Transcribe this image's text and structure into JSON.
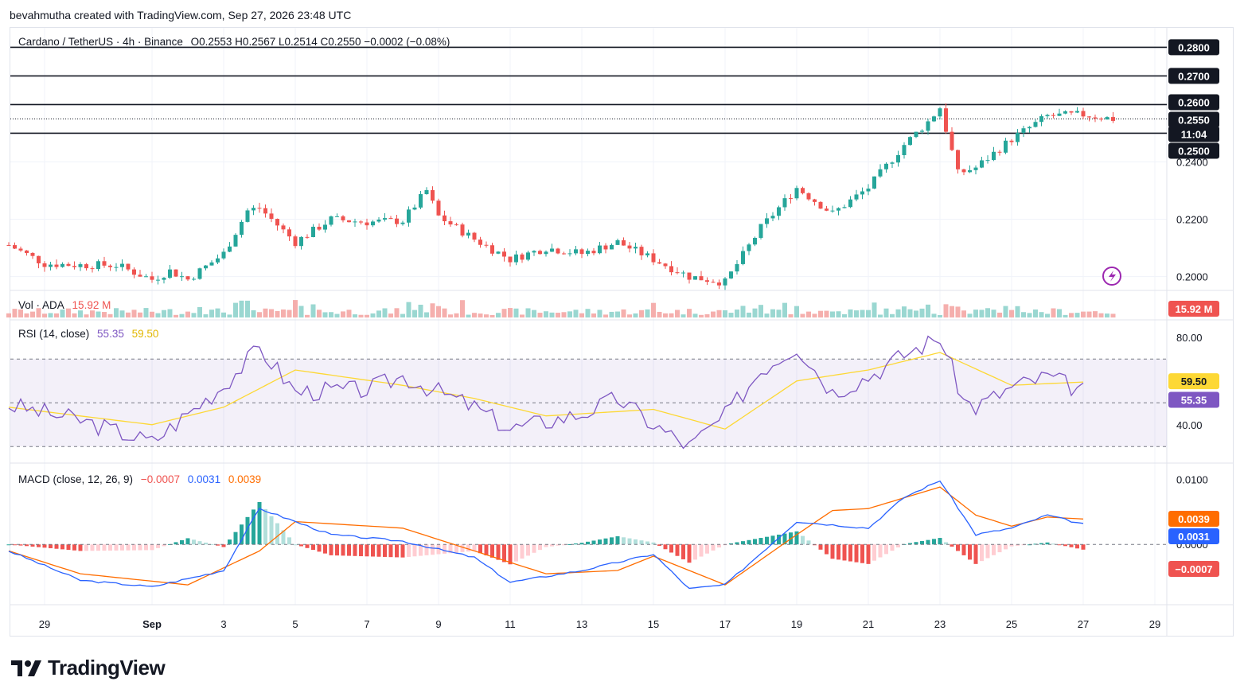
{
  "header": {
    "credit": "bevahmutha created with TradingView.com, Sep 27, 2026 23:48 UTC"
  },
  "legend": {
    "symbol": "Cardano / TetherUS · 4h · Binance",
    "ohlc": "O0.2553  H0.2567  L0.2514  C0.2550  −0.0002 (−0.08%)"
  },
  "volume_legend": {
    "label": "Vol · ADA",
    "value": "15.92 M",
    "badge": "15.92 M"
  },
  "rsi_legend": {
    "label": "RSI (14, close)",
    "rsi": "55.35",
    "ma": "59.50",
    "badge_rsi": "55.35",
    "badge_ma": "59.50"
  },
  "macd_legend": {
    "label": "MACD (close, 12, 26, 9)",
    "hist": "−0.0007",
    "macd": "0.0031",
    "signal": "0.0039",
    "badge_hist": "−0.0007",
    "badge_macd": "0.0031",
    "badge_signal": "0.0039"
  },
  "price_badges": {
    "level_0280": "0.2800",
    "level_0270": "0.2700",
    "level_0260": "0.2600",
    "current": "0.2550",
    "countdown": "11:04",
    "level_0250": "0.2500"
  },
  "brand": {
    "name": "TradingView"
  },
  "colors": {
    "up": "#26a69a",
    "down": "#ef5350",
    "rsi": "#7e57c2",
    "rsi_ma": "#fdd835",
    "macd": "#2962ff",
    "signal": "#ff6d00",
    "text": "#131722"
  },
  "chart_data": [
    {
      "type": "candlestick",
      "title": "Cardano / TetherUS · 4h · Binance",
      "yticks": [
        "0.2000",
        "0.2200",
        "0.2400"
      ],
      "ylim": [
        0.196,
        0.284
      ],
      "xticks": [
        "29",
        "Sep",
        "3",
        "5",
        "7",
        "9",
        "11",
        "13",
        "15",
        "17",
        "19",
        "21",
        "23",
        "25",
        "27",
        "29"
      ],
      "horizontal_levels": [
        0.28,
        0.27,
        0.26,
        0.25
      ],
      "current_price": 0.255,
      "close_path": [
        {
          "date": "Aug 28",
          "close": 0.211
        },
        {
          "date": "Aug 29",
          "close": 0.2045
        },
        {
          "date": "Aug 30",
          "close": 0.204
        },
        {
          "date": "Aug 31",
          "close": 0.204
        },
        {
          "date": "Sep 1",
          "close": 0.199
        },
        {
          "date": "Sep 1 12h",
          "close": 0.202
        },
        {
          "date": "Sep 2",
          "close": 0.199
        },
        {
          "date": "Sep 3",
          "close": 0.208
        },
        {
          "date": "Sep 3 16h",
          "close": 0.223
        },
        {
          "date": "Sep 4",
          "close": 0.224
        },
        {
          "date": "Sep 5",
          "close": 0.212
        },
        {
          "date": "Sep 6",
          "close": 0.22
        },
        {
          "date": "Sep 7",
          "close": 0.219
        },
        {
          "date": "Sep 8",
          "close": 0.2195
        },
        {
          "date": "Sep 8 16h",
          "close": 0.23
        },
        {
          "date": "Sep 9",
          "close": 0.221
        },
        {
          "date": "Sep 10",
          "close": 0.213
        },
        {
          "date": "Sep 11",
          "close": 0.206
        },
        {
          "date": "Sep 12",
          "close": 0.21
        },
        {
          "date": "Sep 13",
          "close": 0.208
        },
        {
          "date": "Sep 14",
          "close": 0.212
        },
        {
          "date": "Sep 15",
          "close": 0.206
        },
        {
          "date": "Sep 16",
          "close": 0.2
        },
        {
          "date": "Sep 17",
          "close": 0.198
        },
        {
          "date": "Sep 18",
          "close": 0.217
        },
        {
          "date": "Sep 19",
          "close": 0.231
        },
        {
          "date": "Sep 20",
          "close": 0.222
        },
        {
          "date": "Sep 21",
          "close": 0.231
        },
        {
          "date": "Sep 22",
          "close": 0.246
        },
        {
          "date": "Sep 22 16h",
          "close": 0.254
        },
        {
          "date": "Sep 23",
          "close": 0.259
        },
        {
          "date": "Sep 23 12h",
          "close": 0.236
        },
        {
          "date": "Sep 24",
          "close": 0.238
        },
        {
          "date": "Sep 25",
          "close": 0.248
        },
        {
          "date": "Sep 26",
          "close": 0.256
        },
        {
          "date": "Sep 27",
          "close": 0.2565
        },
        {
          "date": "Sep 27 20h",
          "close": 0.255
        }
      ]
    },
    {
      "type": "bar",
      "title": "Vol · ADA",
      "last": "15.92 M",
      "bars": [
        {
          "date": "Sep 4",
          "relative": 0.9
        },
        {
          "date": "Sep 11",
          "relative": 1.0
        },
        {
          "date": "Sep 18",
          "relative": 0.7
        },
        {
          "date": "Sep 23",
          "relative": 0.8
        }
      ]
    },
    {
      "type": "line",
      "title": "RSI (14, close)",
      "yticks": [
        "40.00",
        "80.00"
      ],
      "ylim": [
        25,
        85
      ],
      "bands": [
        30,
        50,
        70
      ],
      "series": [
        {
          "name": "RSI",
          "points": [
            {
              "date": "Aug 28",
              "y": 49
            },
            {
              "date": "Aug 30",
              "y": 42
            },
            {
              "date": "Sep 1",
              "y": 32
            },
            {
              "date": "Sep 3",
              "y": 58
            },
            {
              "date": "Sep 4",
              "y": 75
            },
            {
              "date": "Sep 5",
              "y": 55
            },
            {
              "date": "Sep 7",
              "y": 56
            },
            {
              "date": "Sep 8",
              "y": 62
            },
            {
              "date": "Sep 10",
              "y": 48
            },
            {
              "date": "Sep 11",
              "y": 38
            },
            {
              "date": "Sep 13",
              "y": 45
            },
            {
              "date": "Sep 14",
              "y": 52
            },
            {
              "date": "Sep 15",
              "y": 40
            },
            {
              "date": "Sep 16",
              "y": 30
            },
            {
              "date": "Sep 17",
              "y": 44
            },
            {
              "date": "Sep 18",
              "y": 65
            },
            {
              "date": "Sep 19",
              "y": 76
            },
            {
              "date": "Sep 20",
              "y": 55
            },
            {
              "date": "Sep 21",
              "y": 62
            },
            {
              "date": "Sep 22",
              "y": 72
            },
            {
              "date": "Sep 23",
              "y": 80
            },
            {
              "date": "Sep 23 16h",
              "y": 51
            },
            {
              "date": "Sep 24",
              "y": 48
            },
            {
              "date": "Sep 25",
              "y": 57
            },
            {
              "date": "Sep 26",
              "y": 62
            },
            {
              "date": "Sep 27",
              "y": 55.35
            }
          ]
        },
        {
          "name": "RSI MA",
          "points": [
            {
              "date": "Aug 28",
              "y": 48
            },
            {
              "date": "Sep 1",
              "y": 40
            },
            {
              "date": "Sep 3",
              "y": 48
            },
            {
              "date": "Sep 5",
              "y": 65
            },
            {
              "date": "Sep 8",
              "y": 58
            },
            {
              "date": "Sep 10",
              "y": 52
            },
            {
              "date": "Sep 12",
              "y": 44
            },
            {
              "date": "Sep 15",
              "y": 47
            },
            {
              "date": "Sep 17",
              "y": 38
            },
            {
              "date": "Sep 19",
              "y": 60
            },
            {
              "date": "Sep 21",
              "y": 65
            },
            {
              "date": "Sep 23",
              "y": 73
            },
            {
              "date": "Sep 25",
              "y": 58
            },
            {
              "date": "Sep 27",
              "y": 59.5
            }
          ]
        }
      ]
    },
    {
      "type": "line",
      "title": "MACD (close, 12, 26, 9)",
      "yticks": [
        "0.0100",
        "0.0000"
      ],
      "ylim": [
        -0.009,
        0.0115
      ],
      "series": [
        {
          "name": "MACD",
          "points": [
            {
              "date": "Aug 28",
              "y": -0.001
            },
            {
              "date": "Aug 30",
              "y": -0.0055
            },
            {
              "date": "Sep 1",
              "y": -0.0065
            },
            {
              "date": "Sep 3",
              "y": -0.004
            },
            {
              "date": "Sep 4",
              "y": 0.0055
            },
            {
              "date": "Sep 6",
              "y": 0.0015
            },
            {
              "date": "Sep 8",
              "y": 0.0005
            },
            {
              "date": "Sep 10",
              "y": -0.002
            },
            {
              "date": "Sep 11",
              "y": -0.0058
            },
            {
              "date": "Sep 13",
              "y": -0.004
            },
            {
              "date": "Sep 15",
              "y": -0.0015
            },
            {
              "date": "Sep 16",
              "y": -0.0068
            },
            {
              "date": "Sep 17",
              "y": -0.0062
            },
            {
              "date": "Sep 19",
              "y": 0.0035
            },
            {
              "date": "Sep 21",
              "y": 0.0025
            },
            {
              "date": "Sep 22",
              "y": 0.0072
            },
            {
              "date": "Sep 23",
              "y": 0.0098
            },
            {
              "date": "Sep 24",
              "y": 0.0015
            },
            {
              "date": "Sep 25",
              "y": 0.0025
            },
            {
              "date": "Sep 26",
              "y": 0.0045
            },
            {
              "date": "Sep 27",
              "y": 0.0031
            }
          ]
        },
        {
          "name": "Signal",
          "points": [
            {
              "date": "Aug 28",
              "y": -0.001
            },
            {
              "date": "Aug 30",
              "y": -0.0045
            },
            {
              "date": "Sep 2",
              "y": -0.0062
            },
            {
              "date": "Sep 4",
              "y": -0.001
            },
            {
              "date": "Sep 5",
              "y": 0.0035
            },
            {
              "date": "Sep 8",
              "y": 0.0025
            },
            {
              "date": "Sep 10",
              "y": -0.001
            },
            {
              "date": "Sep 12",
              "y": -0.0045
            },
            {
              "date": "Sep 14",
              "y": -0.004
            },
            {
              "date": "Sep 15",
              "y": -0.0018
            },
            {
              "date": "Sep 17",
              "y": -0.0062
            },
            {
              "date": "Sep 19",
              "y": 0.0015
            },
            {
              "date": "Sep 20",
              "y": 0.0052
            },
            {
              "date": "Sep 21",
              "y": 0.0055
            },
            {
              "date": "Sep 23",
              "y": 0.0088
            },
            {
              "date": "Sep 24",
              "y": 0.0045
            },
            {
              "date": "Sep 25",
              "y": 0.0028
            },
            {
              "date": "Sep 26",
              "y": 0.0042
            },
            {
              "date": "Sep 27",
              "y": 0.0039
            }
          ]
        }
      ]
    }
  ]
}
